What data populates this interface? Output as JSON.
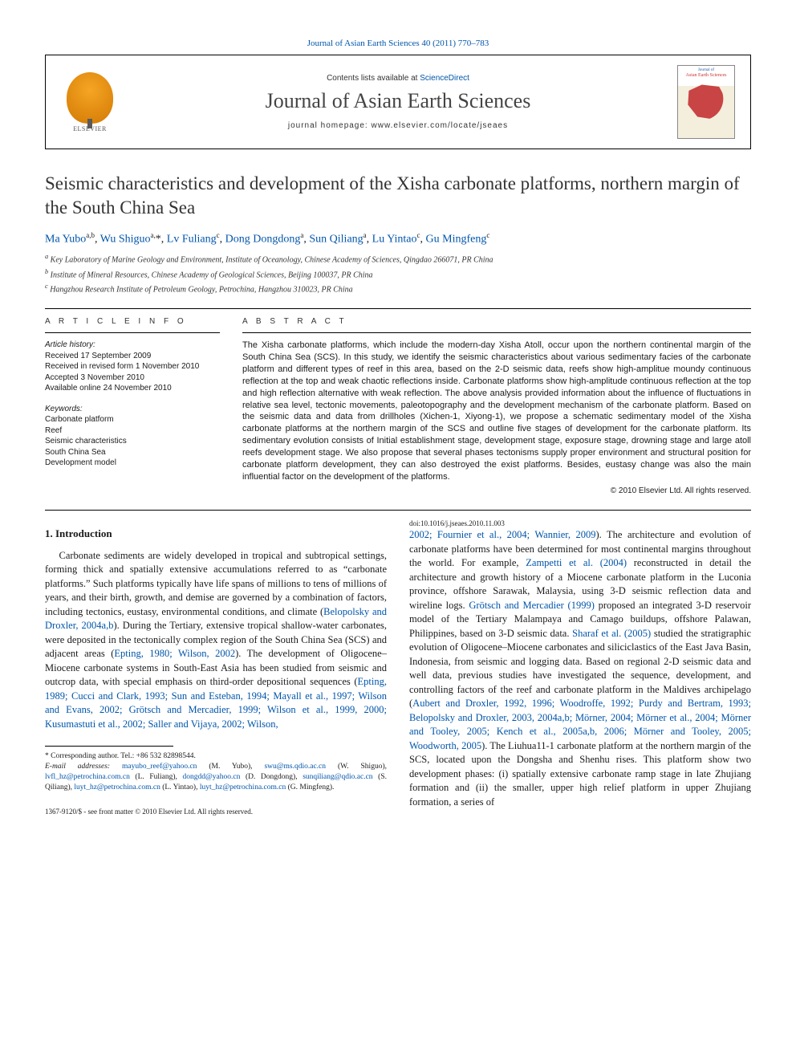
{
  "journal_ref_text": "Journal of Asian Earth Sciences 40 (2011) 770–783",
  "header": {
    "contents_prefix": "Contents lists available at ",
    "contents_link": "ScienceDirect",
    "journal_title": "Journal of Asian Earth Sciences",
    "homepage_prefix": "journal homepage: ",
    "homepage_url": "www.elsevier.com/locate/jseaes",
    "publisher_name": "ELSEVIER",
    "cover_line1": "Journal of",
    "cover_line2": "Asian Earth Sciences"
  },
  "article": {
    "title": "Seismic characteristics and development of the Xisha carbonate platforms, northern margin of the South China Sea",
    "authors_html": "Ma Yubo <sup>a,b</sup>, Wu Shiguo <sup>a,</sup>*, Lv Fuliang <sup>c</sup>, Dong Dongdong <sup>a</sup>, Sun Qiliang <sup>a</sup>, Lu Yintao <sup>c</sup>, Gu Mingfeng <sup>c</sup>",
    "affiliations": [
      "a Key Laboratory of Marine Geology and Environment, Institute of Oceanology, Chinese Academy of Sciences, Qingdao 266071, PR China",
      "b Institute of Mineral Resources, Chinese Academy of Geological Sciences, Beijing 100037, PR China",
      "c Hangzhou Research Institute of Petroleum Geology, Petrochina, Hangzhou 310023, PR China"
    ]
  },
  "info": {
    "heading": "a r t i c l e   i n f o",
    "history_label": "Article history:",
    "history": [
      "Received 17 September 2009",
      "Received in revised form 1 November 2010",
      "Accepted 3 November 2010",
      "Available online 24 November 2010"
    ],
    "keywords_label": "Keywords:",
    "keywords": [
      "Carbonate platform",
      "Reef",
      "Seismic characteristics",
      "South China Sea",
      "Development model"
    ]
  },
  "abstract": {
    "heading": "a b s t r a c t",
    "text": "The Xisha carbonate platforms, which include the modern-day Xisha Atoll, occur upon the northern continental margin of the South China Sea (SCS). In this study, we identify the seismic characteristics about various sedimentary facies of the carbonate platform and different types of reef in this area, based on the 2-D seismic data, reefs show high-amplitue moundy continuous reflection at the top and weak chaotic reflections inside. Carbonate platforms show high-amplitude continuous reflection at the top and high reflection alternative with weak reflection. The above analysis provided information about the influence of fluctuations in relative sea level, tectonic movements, paleotopography and the development mechanism of the carbonate platform. Based on the seismic data and data from drillholes (Xichen-1, Xiyong-1), we propose a schematic sedimentary model of the Xisha carbonate platforms at the northern margin of the SCS and outline five stages of development for the carbonate platform. Its sedimentary evolution consists of Initial establishment stage, development stage, exposure stage, drowning stage and large atoll reefs development stage. We also propose that several phases tectonisms supply proper environment and structural position for carbonate platform development, they can also destroyed the exist platforms. Besides, eustasy change was also the main influential factor on the development of the platforms.",
    "copyright": "© 2010 Elsevier Ltd. All rights reserved."
  },
  "section1": {
    "heading": "1. Introduction",
    "para1_a": "Carbonate sediments are widely developed in tropical and subtropical settings, forming thick and spatially extensive accumulations referred to as “carbonate platforms.” Such platforms typically have life spans of millions to tens of millions of years, and their birth, growth, and demise are governed by a combination of factors, including tectonics, eustasy, environmental conditions, and climate (",
    "cite1": "Belopolsky and Droxler, 2004a,b",
    "para1_b": "). During the Tertiary, extensive tropical shallow-water carbonates, were deposited in the tectonically complex region of the South China Sea (SCS) and adjacent areas (",
    "cite2": "Epting, 1980; Wilson, 2002",
    "para1_c": "). The development of Oligocene–Miocene carbonate systems in South-East Asia has been studied from seismic and outcrop data, with special emphasis on third-order depositional sequences (",
    "cite3": "Epting, 1989; Cucci and Clark, 1993; Sun and Esteban, 1994; Mayall et al., 1997; Wilson and Evans, 2002; Grötsch and Mercadier, 1999; Wilson et al., 1999, 2000; Kusumastuti et al., 2002; Saller and Vijaya, 2002; Wilson,",
    "cite3b": "2002; Fournier et al., 2004; Wannier, 2009",
    "para1_d": "). The architecture and evolution of carbonate platforms have been determined for most continental margins throughout the world. For example, ",
    "cite4": "Zampetti et al. (2004)",
    "para1_e": " reconstructed in detail the architecture and growth history of a Miocene carbonate platform in the Luconia province, offshore Sarawak, Malaysia, using 3-D seismic reflection data and wireline logs. ",
    "cite5": "Grötsch and Mercadier (1999)",
    "para1_f": " proposed an integrated 3-D reservoir model of the Tertiary Malampaya and Camago buildups, offshore Palawan, Philippines, based on 3-D seismic data. ",
    "cite6": "Sharaf et al. (2005)",
    "para1_g": " studied the stratigraphic evolution of Oligocene–Miocene carbonates and siliciclastics of the East Java Basin, Indonesia, from seismic and logging data. Based on regional 2-D seismic data and well data, previous studies have investigated the sequence, development, and controlling factors of the reef and carbonate platform in the Maldives archipelago (",
    "cite7": "Aubert and Droxler, 1992, 1996; Woodroffe, 1992; Purdy and Bertram, 1993; Belopolsky and Droxler, 2003, 2004a,b; Mörner, 2004; Mörner et al., 2004; Mörner and Tooley, 2005; Kench et al., 2005a,b, 2006; Mörner and Tooley, 2005; Woodworth, 2005",
    "para1_h": "). The Liuhua11-1 carbonate platform at the northern margin of the SCS, located upon the Dongsha and Shenhu rises. This platform show two development phases: (i) spatially extensive carbonate ramp stage in late Zhujiang formation and (ii) the smaller, upper high relief platform in upper Zhujiang formation, a series of"
  },
  "footnote": {
    "corr": "* Corresponding author. Tel.: +86 532 82898544.",
    "emails_label": "E-mail addresses: ",
    "emails": [
      {
        "addr": "mayubo_reef@yahoo.cn",
        "who": " (M. Yubo), "
      },
      {
        "addr": "swu@ms.qdio.ac.cn",
        "who": " (W. Shiguo), "
      },
      {
        "addr": "lvfl_hz@petrochina.com.cn",
        "who": " (L. Fuliang), "
      },
      {
        "addr": "dongdd@yahoo.cn",
        "who": " (D. Dongdong), "
      },
      {
        "addr": "sunqiliang@qdio.ac.cn",
        "who": " (S. Qiliang), "
      },
      {
        "addr": "luyt_hz@petrochina.com.cn",
        "who": " (L. Yintao), "
      },
      {
        "addr": "luyt_hz@petrochina.com.cn",
        "who": " (G. Mingfeng)."
      }
    ]
  },
  "bottom": {
    "issn_line": "1367-9120/$ - see front matter © 2010 Elsevier Ltd. All rights reserved.",
    "doi_line": "doi:10.1016/j.jseaes.2010.11.003"
  },
  "colors": {
    "link": "#0055aa",
    "text": "#1a1a1a",
    "accent_orange": "#e08a10"
  }
}
